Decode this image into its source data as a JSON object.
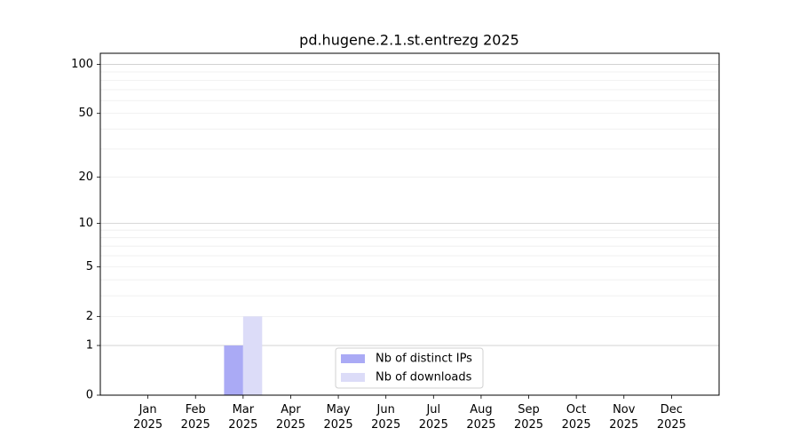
{
  "chart_data": {
    "type": "bar",
    "title": "pd.hugene.2.1.st.entrezg 2025",
    "categories": [
      [
        "Jan",
        "2025"
      ],
      [
        "Feb",
        "2025"
      ],
      [
        "Mar",
        "2025"
      ],
      [
        "Apr",
        "2025"
      ],
      [
        "May",
        "2025"
      ],
      [
        "Jun",
        "2025"
      ],
      [
        "Jul",
        "2025"
      ],
      [
        "Aug",
        "2025"
      ],
      [
        "Sep",
        "2025"
      ],
      [
        "Oct",
        "2025"
      ],
      [
        "Nov",
        "2025"
      ],
      [
        "Dec",
        "2025"
      ]
    ],
    "series": [
      {
        "name": "Nb of distinct IPs",
        "color": "#aaaaf5",
        "values": [
          0,
          0,
          1,
          0,
          0,
          0,
          0,
          0,
          0,
          0,
          0,
          0
        ]
      },
      {
        "name": "Nb of downloads",
        "color": "#dcdcf8",
        "values": [
          0,
          0,
          2,
          0,
          0,
          0,
          0,
          0,
          0,
          0,
          0,
          0
        ]
      }
    ],
    "yscale": "log1p",
    "ylim": [
      0,
      117
    ],
    "yticks": [
      0,
      1,
      2,
      5,
      10,
      20,
      50,
      100
    ],
    "yminorticks": [
      3,
      4,
      6,
      7,
      8,
      9,
      30,
      40,
      60,
      70,
      80,
      90
    ],
    "grid": true,
    "legend": "lower center"
  }
}
